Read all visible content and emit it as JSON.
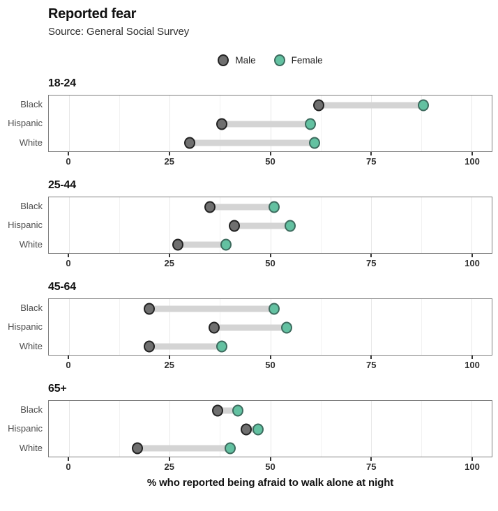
{
  "header": {
    "title": "Reported fear",
    "subtitle": "Source: General Social Survey"
  },
  "legend": {
    "items": [
      {
        "label": "Male"
      },
      {
        "label": "Female"
      }
    ]
  },
  "colors": {
    "male_fill": "#6f6f6f",
    "male_stroke": "#222222",
    "female_fill": "#63c1a1",
    "female_stroke": "#3d6b5e",
    "segment": "#d4d4d4",
    "panel_border": "#7f7f7f",
    "gridline_major": "#e7e7e7",
    "gridline_minor": "#f2f2f2"
  },
  "chart_data": {
    "type": "scatter",
    "variant": "dumbbell",
    "title": "Reported fear",
    "subtitle": "Source: General Social Survey",
    "xlabel": "% who reported being afraid to walk alone at night",
    "xlim": [
      0,
      100
    ],
    "axis_expansion": 5,
    "xticks": [
      0,
      25,
      50,
      75,
      100
    ],
    "xticks_minor": [
      12.5,
      37.5,
      62.5,
      87.5
    ],
    "grid": "vertical",
    "legend_position": "top-center",
    "series_names": [
      "Male",
      "Female"
    ],
    "facets": [
      {
        "label": "18-24",
        "categories": [
          "Black",
          "Hispanic",
          "White"
        ],
        "male": [
          62,
          38,
          30
        ],
        "female": [
          88,
          60,
          61
        ]
      },
      {
        "label": "25-44",
        "categories": [
          "Black",
          "Hispanic",
          "White"
        ],
        "male": [
          35,
          41,
          27
        ],
        "female": [
          51,
          55,
          39
        ]
      },
      {
        "label": "45-64",
        "categories": [
          "Black",
          "Hispanic",
          "White"
        ],
        "male": [
          20,
          36,
          20
        ],
        "female": [
          51,
          54,
          38
        ]
      },
      {
        "label": "65+",
        "categories": [
          "Black",
          "Hispanic",
          "White"
        ],
        "male": [
          37,
          44,
          17
        ],
        "female": [
          42,
          47,
          40
        ]
      }
    ]
  }
}
